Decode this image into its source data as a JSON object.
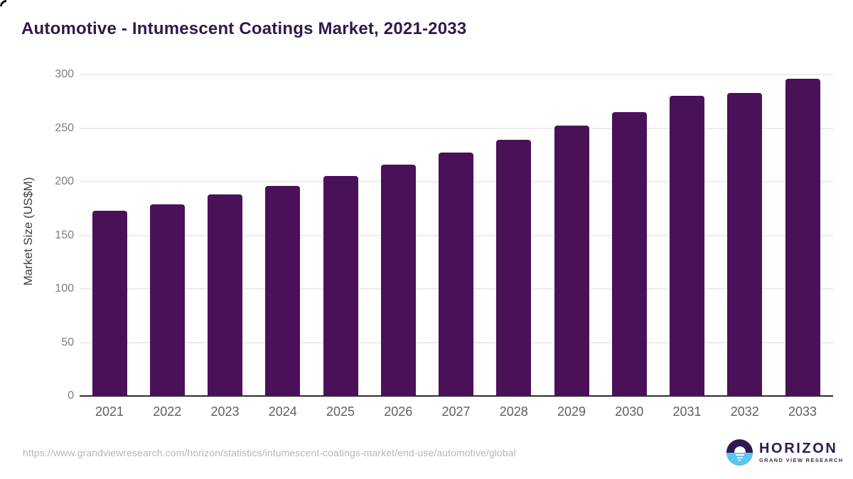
{
  "page": {
    "title": "Automotive - Intumescent Coatings Market, 2021-2033"
  },
  "chart_data": {
    "type": "bar",
    "title": "Automotive - Intumescent Coatings Market, 2021-2033",
    "categories": [
      "2021",
      "2022",
      "2023",
      "2024",
      "2025",
      "2026",
      "2027",
      "2028",
      "2029",
      "2030",
      "2031",
      "2032",
      "2033"
    ],
    "values": [
      173,
      179,
      188,
      196,
      205,
      216,
      227,
      239,
      252,
      265,
      280,
      283,
      296
    ],
    "xlabel": "",
    "ylabel": "Market Size (US$M)",
    "ylim": [
      0,
      300
    ],
    "yticks": [
      0,
      50,
      100,
      150,
      200,
      250,
      300
    ],
    "grid": "horizontal-only",
    "legend": "none",
    "bar_color": "#4a1159"
  },
  "footer": {
    "source_url": "https://www.grandviewresearch.com/horizon/statistics/intumescent-coatings-market/end-use/automotive/global",
    "logo": {
      "name": "HORIZON",
      "tagline": "GRAND VIEW RESEARCH"
    }
  },
  "colors": {
    "bar": "#4a1159",
    "title_text": "#2e1a4d",
    "axis_line": "#2b2b2b",
    "gridline": "#ececec",
    "y_tick_text": "#7d7d7d",
    "x_tick_text": "#5f5f5f",
    "url_text": "#b6b6b6",
    "logo_purple": "#2d1b4e",
    "logo_blue": "#58c6f0"
  }
}
